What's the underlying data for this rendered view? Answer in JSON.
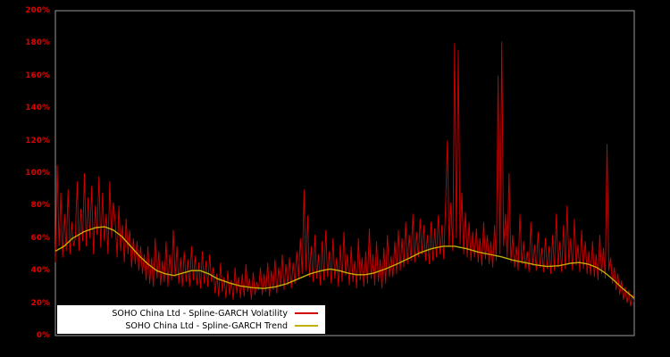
{
  "colors": {
    "background": "#000000",
    "axis_label": "#dd0000",
    "plot_border": "#9a9a9a",
    "volatility": "#d10000",
    "trend": "#c0b000",
    "legend_background": "#ffffff",
    "legend_text": "#000000"
  },
  "chart_data": {
    "type": "line",
    "title": "",
    "xlabel": "",
    "ylabel": "",
    "ylim": [
      0,
      200
    ],
    "ytick_step": 20,
    "ytick_labels": [
      "0%",
      "20%",
      "40%",
      "60%",
      "80%",
      "100%",
      "120%",
      "140%",
      "160%",
      "180%",
      "200%"
    ],
    "grid": false,
    "legend_position": "bottom-left-inside",
    "series": [
      {
        "name": "SOHO China Ltd - Spline-GARCH Volatility",
        "color": "#d10000",
        "values": [
          45,
          105,
          55,
          88,
          48,
          75,
          52,
          90,
          50,
          70,
          55,
          60,
          95,
          52,
          78,
          58,
          100,
          55,
          85,
          60,
          92,
          50,
          80,
          62,
          98,
          54,
          88,
          58,
          75,
          50,
          95,
          60,
          82,
          70,
          48,
          80,
          52,
          68,
          45,
          72,
          50,
          65,
          42,
          60,
          44,
          58,
          40,
          55,
          38,
          50,
          34,
          55,
          32,
          48,
          30,
          60,
          35,
          52,
          31,
          46,
          33,
          58,
          30,
          50,
          34,
          65,
          36,
          55,
          32,
          48,
          30,
          52,
          33,
          47,
          30,
          55,
          34,
          49,
          31,
          45,
          29,
          52,
          32,
          46,
          30,
          50,
          33,
          42,
          26,
          38,
          24,
          45,
          27,
          36,
          23,
          40,
          25,
          34,
          22,
          42,
          26,
          36,
          23,
          38,
          24,
          44,
          27,
          35,
          22,
          39,
          25,
          33,
          28,
          42,
          25,
          38,
          27,
          45,
          24,
          40,
          28,
          47,
          26,
          42,
          30,
          50,
          28,
          44,
          31,
          48,
          29,
          45,
          32,
          52,
          35,
          60,
          38,
          90,
          40,
          74,
          36,
          55,
          33,
          62,
          35,
          50,
          31,
          58,
          34,
          65,
          36,
          52,
          32,
          60,
          35,
          48,
          30,
          56,
          33,
          64,
          37,
          50,
          31,
          55,
          33,
          46,
          29,
          60,
          34,
          48,
          30,
          52,
          32,
          66,
          35,
          50,
          31,
          58,
          33,
          47,
          29,
          54,
          32,
          62,
          36,
          49,
          36,
          58,
          38,
          65,
          40,
          60,
          42,
          70,
          44,
          62,
          46,
          75,
          45,
          64,
          48,
          72,
          50,
          68,
          46,
          62,
          44,
          70,
          46,
          66,
          48,
          74,
          50,
          68,
          47,
          78,
          120,
          55,
          82,
          52,
          180,
          60,
          176,
          56,
          88,
          50,
          76,
          48,
          70,
          46,
          64,
          48,
          66,
          45,
          60,
          43,
          70,
          47,
          62,
          44,
          58,
          42,
          68,
          46,
          160,
          50,
          181,
          55,
          75,
          48,
          100,
          45,
          62,
          42,
          55,
          40,
          75,
          44,
          58,
          41,
          52,
          39,
          70,
          43,
          56,
          40,
          64,
          42,
          54,
          39,
          60,
          41,
          55,
          38,
          62,
          40,
          75,
          42,
          58,
          39,
          68,
          41,
          80,
          44,
          60,
          40,
          72,
          43,
          56,
          39,
          65,
          41,
          58,
          38,
          52,
          37,
          58,
          36,
          50,
          34,
          62,
          38,
          54,
          35,
          118,
          40,
          48,
          32,
          42,
          28,
          38,
          25,
          34,
          22,
          30,
          20,
          28,
          18,
          25,
          21
        ]
      },
      {
        "name": "SOHO China Ltd - Spline-GARCH Trend",
        "color": "#c0b000",
        "points": [
          [
            0,
            52
          ],
          [
            0.015,
            55
          ],
          [
            0.03,
            60
          ],
          [
            0.05,
            64
          ],
          [
            0.07,
            66.5
          ],
          [
            0.085,
            67
          ],
          [
            0.1,
            65
          ],
          [
            0.115,
            61
          ],
          [
            0.13,
            55
          ],
          [
            0.145,
            49
          ],
          [
            0.16,
            44
          ],
          [
            0.175,
            40
          ],
          [
            0.19,
            38
          ],
          [
            0.205,
            37
          ],
          [
            0.22,
            38.5
          ],
          [
            0.235,
            40
          ],
          [
            0.25,
            40
          ],
          [
            0.265,
            38
          ],
          [
            0.28,
            35
          ],
          [
            0.3,
            32.5
          ],
          [
            0.32,
            30.5
          ],
          [
            0.34,
            29.5
          ],
          [
            0.36,
            29
          ],
          [
            0.38,
            30
          ],
          [
            0.4,
            32
          ],
          [
            0.42,
            35
          ],
          [
            0.44,
            38
          ],
          [
            0.46,
            40
          ],
          [
            0.475,
            41
          ],
          [
            0.49,
            40
          ],
          [
            0.505,
            38.5
          ],
          [
            0.52,
            37.5
          ],
          [
            0.535,
            37.5
          ],
          [
            0.55,
            38.5
          ],
          [
            0.57,
            41
          ],
          [
            0.59,
            44
          ],
          [
            0.61,
            47.5
          ],
          [
            0.63,
            51
          ],
          [
            0.65,
            53.5
          ],
          [
            0.67,
            55
          ],
          [
            0.69,
            55
          ],
          [
            0.71,
            53.5
          ],
          [
            0.73,
            51.5
          ],
          [
            0.75,
            50
          ],
          [
            0.77,
            48.5
          ],
          [
            0.79,
            46.5
          ],
          [
            0.81,
            45
          ],
          [
            0.83,
            43.5
          ],
          [
            0.85,
            42.5
          ],
          [
            0.87,
            43
          ],
          [
            0.89,
            44.5
          ],
          [
            0.905,
            45
          ],
          [
            0.92,
            44
          ],
          [
            0.935,
            42
          ],
          [
            0.95,
            38.5
          ],
          [
            0.965,
            34
          ],
          [
            0.98,
            29
          ],
          [
            1.0,
            23
          ]
        ]
      }
    ]
  },
  "legend": {
    "items": [
      {
        "label": "SOHO China Ltd - Spline-GARCH Volatility",
        "color": "#d10000"
      },
      {
        "label": "SOHO China Ltd - Spline-GARCH Trend",
        "color": "#c0b000"
      }
    ]
  }
}
